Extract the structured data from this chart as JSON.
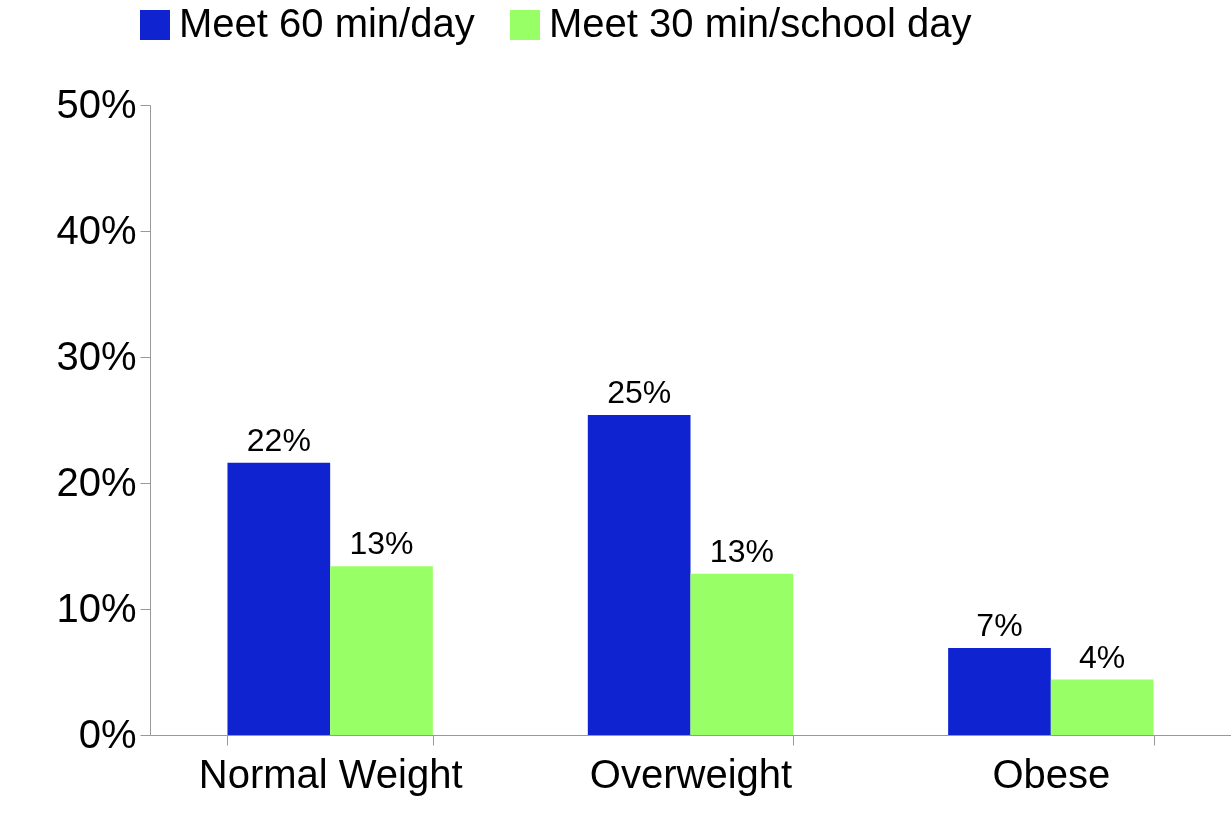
{
  "chart_data": {
    "type": "bar",
    "categories": [
      "Normal Weight",
      "Overweight",
      "Obese"
    ],
    "series": [
      {
        "name": "Meet 60 min/day",
        "color": "#1023d0",
        "values": [
          21.6,
          25.4,
          6.9
        ],
        "value_labels": [
          "22%",
          "25%",
          "7%"
        ]
      },
      {
        "name": "Meet 30 min/school day",
        "color": "#99ff66",
        "values": [
          13.4,
          12.8,
          4.4
        ],
        "value_labels": [
          "13%",
          "13%",
          "4%"
        ]
      }
    ],
    "ylim": [
      0,
      50
    ],
    "yticks": [
      {
        "value": 0,
        "label": "0%"
      },
      {
        "value": 10,
        "label": "10%"
      },
      {
        "value": 20,
        "label": "20%"
      },
      {
        "value": 30,
        "label": "30%"
      },
      {
        "value": 40,
        "label": "40%"
      },
      {
        "value": 50,
        "label": "50%"
      }
    ],
    "grid": false,
    "legend": "top"
  }
}
